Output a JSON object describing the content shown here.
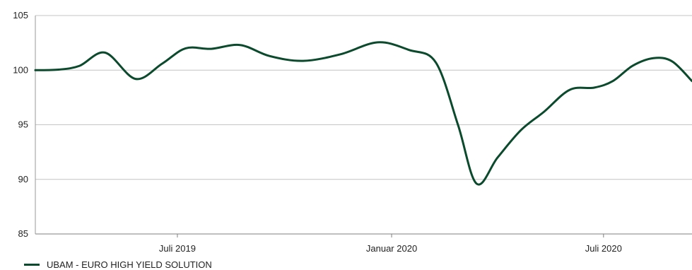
{
  "chart_data": {
    "type": "line",
    "title": "",
    "xlabel": "",
    "ylabel": "",
    "ylim": [
      85,
      105
    ],
    "y_ticks": [
      105,
      100,
      95,
      90,
      85
    ],
    "x_tick_labels": [
      "Juli 2019",
      "Januar 2020",
      "Juli 2020"
    ],
    "x_tick_dates": [
      "2019-07-01",
      "2020-01-01",
      "2020-07-01"
    ],
    "x_range": [
      "2019-03-01",
      "2020-09-15"
    ],
    "grid": "horizontal",
    "legend_position": "bottom-left",
    "series": [
      {
        "name": "UBAM - EURO HIGH YIELD SOLUTION",
        "color": "#0b4a2c",
        "x": [
          "2019-03-01",
          "2019-03-21",
          "2019-04-08",
          "2019-04-30",
          "2019-05-26",
          "2019-06-18",
          "2019-07-08",
          "2019-07-30",
          "2019-08-24",
          "2019-09-18",
          "2019-10-17",
          "2019-11-18",
          "2019-12-20",
          "2020-01-16",
          "2020-02-08",
          "2020-02-27",
          "2020-03-14",
          "2020-04-01",
          "2020-04-21",
          "2020-05-11",
          "2020-06-02",
          "2020-06-23",
          "2020-07-09",
          "2020-07-26",
          "2020-08-13",
          "2020-08-29",
          "2020-09-15"
        ],
        "values": [
          100.0,
          100.05,
          100.4,
          101.6,
          99.2,
          100.6,
          102.0,
          101.95,
          102.3,
          101.3,
          100.85,
          101.45,
          102.55,
          101.85,
          100.7,
          95.0,
          89.6,
          92.0,
          94.5,
          96.2,
          98.2,
          98.4,
          99.0,
          100.4,
          101.1,
          100.8,
          99.0
        ]
      }
    ]
  }
}
